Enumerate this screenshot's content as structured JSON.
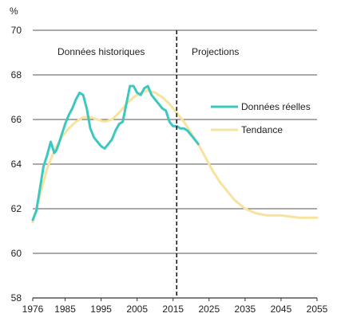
{
  "chart_data": {
    "type": "line",
    "ylabel": "%",
    "xlim": [
      1976,
      2055
    ],
    "ylim": [
      58,
      70
    ],
    "x_ticks": [
      1976,
      1985,
      1995,
      2005,
      2015,
      2025,
      2035,
      2045,
      2055
    ],
    "y_ticks": [
      58,
      60,
      62,
      64,
      66,
      68,
      70
    ],
    "grid": "horizontal",
    "legend_position": "right",
    "annotations": {
      "historical": "Données historiques",
      "projections": "Projections",
      "divider_x": 2016
    },
    "colors": {
      "actual": "#3cc8c0",
      "trend": "#f6e39e",
      "grid": "#555555",
      "axis": "#333333"
    },
    "series": [
      {
        "name": "Données réelles",
        "x": [
          1976,
          1977,
          1978,
          1979,
          1980,
          1981,
          1982,
          1982.5,
          1983,
          1984,
          1985,
          1986,
          1987,
          1988,
          1989,
          1990,
          1991,
          1992,
          1993,
          1994,
          1995,
          1996,
          1997,
          1998,
          1999,
          2000,
          2001,
          2002,
          2003,
          2004,
          2005,
          2006,
          2007,
          2008,
          2009,
          2010,
          2011,
          2012,
          2013,
          2014,
          2015,
          2016,
          2017,
          2018,
          2019,
          2020,
          2021,
          2022
        ],
        "y": [
          61.5,
          61.9,
          62.9,
          63.9,
          64.4,
          65.0,
          64.5,
          64.6,
          64.8,
          65.3,
          65.8,
          66.2,
          66.5,
          66.9,
          67.2,
          67.1,
          66.5,
          65.6,
          65.2,
          65.0,
          64.8,
          64.7,
          64.9,
          65.1,
          65.5,
          65.8,
          65.9,
          66.7,
          67.5,
          67.5,
          67.2,
          67.1,
          67.4,
          67.5,
          67.1,
          66.9,
          66.7,
          66.5,
          66.4,
          65.9,
          65.7,
          65.7,
          65.6,
          65.6,
          65.5,
          65.3,
          65.1,
          64.9
        ]
      },
      {
        "name": "Tendance",
        "x": [
          1976,
          1978,
          1980,
          1982,
          1984,
          1986,
          1988,
          1990,
          1992,
          1994,
          1996,
          1998,
          2000,
          2002,
          2004,
          2006,
          2008,
          2010,
          2012,
          2014,
          2016,
          2018,
          2020,
          2022,
          2024,
          2026,
          2028,
          2030,
          2032,
          2035,
          2038,
          2041,
          2045,
          2050,
          2055
        ],
        "y": [
          61.4,
          62.6,
          63.8,
          64.6,
          65.2,
          65.6,
          65.9,
          66.1,
          66.1,
          66.0,
          65.9,
          66.0,
          66.3,
          66.7,
          67.0,
          67.2,
          67.3,
          67.2,
          67.0,
          66.7,
          66.3,
          65.9,
          65.4,
          64.9,
          64.3,
          63.7,
          63.2,
          62.8,
          62.4,
          62.0,
          61.8,
          61.7,
          61.7,
          61.6,
          61.6
        ]
      }
    ]
  }
}
